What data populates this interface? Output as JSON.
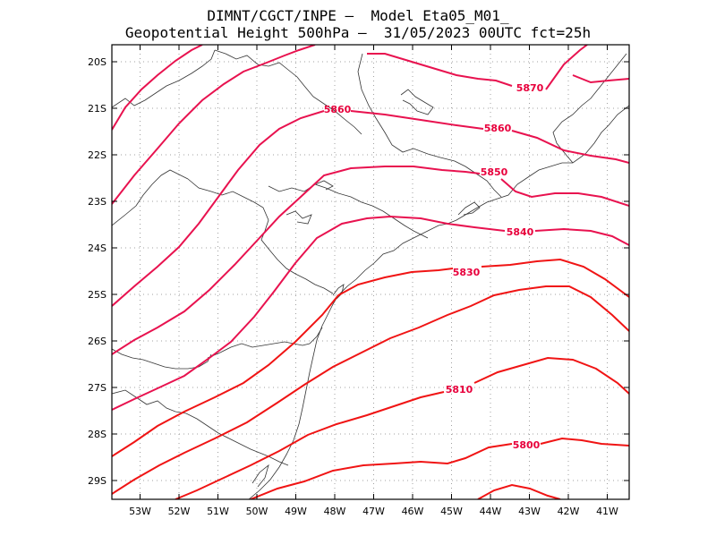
{
  "title_line1": "DIMNT/CGCT/INPE –  Model Eta05_M01_",
  "title_line2": "Geopotential Height 500hPa –  31/05/2023 00UTC fct=25h",
  "colors": {
    "contour_pink": "#e8124f",
    "contour_red": "#f01414",
    "coast": "#333333",
    "grid": "#999999"
  },
  "lon_labels": [
    "53W",
    "52W",
    "51W",
    "50W",
    "49W",
    "48W",
    "47W",
    "46W",
    "45W",
    "44W",
    "43W",
    "42W",
    "41W"
  ],
  "lat_labels": [
    "20S",
    "21S",
    "22S",
    "23S",
    "24S",
    "25S",
    "26S",
    "27S",
    "28S",
    "29S"
  ],
  "contour_labels": [
    {
      "text": "5870"
    },
    {
      "text": "5860"
    },
    {
      "text": "5860"
    },
    {
      "text": "5850"
    },
    {
      "text": "5840"
    },
    {
      "text": "5830"
    },
    {
      "text": "5810"
    },
    {
      "text": "5800"
    }
  ]
}
